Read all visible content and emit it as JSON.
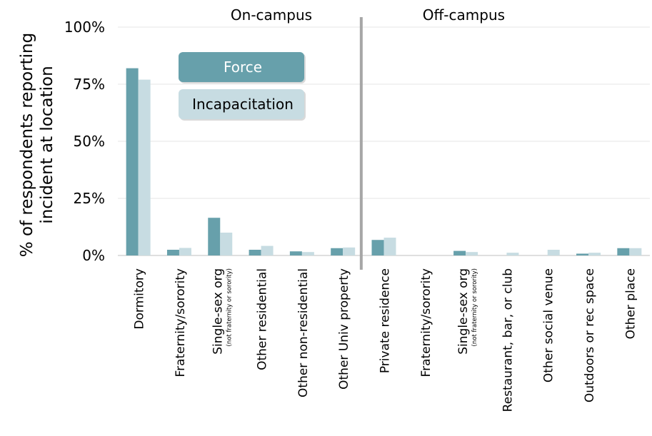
{
  "chart_data": {
    "type": "bar",
    "ylabel_line1": "% of respondents reporting",
    "ylabel_line2": "incident at location",
    "yticks": [
      "0%",
      "25%",
      "50%",
      "75%",
      "100%"
    ],
    "ylim": [
      0,
      100
    ],
    "grid": true,
    "legend_position": "top-left",
    "groups": [
      {
        "label": "On-campus",
        "start": 0,
        "end": 5
      },
      {
        "label": "Off-campus",
        "start": 6,
        "end": 12
      }
    ],
    "categories": [
      {
        "main": "Dormitory",
        "sub": ""
      },
      {
        "main": "Fraternity/sorority",
        "sub": ""
      },
      {
        "main": "Single-sex org",
        "sub": "(not fraternity or sorority)"
      },
      {
        "main": "Other residential",
        "sub": ""
      },
      {
        "main": "Other non-residential",
        "sub": ""
      },
      {
        "main": "Other Univ property",
        "sub": ""
      },
      {
        "main": "Private residence",
        "sub": ""
      },
      {
        "main": "Fraternity/sorority",
        "sub": ""
      },
      {
        "main": "Single-sex org",
        "sub": "(not fraternity or sorority)"
      },
      {
        "main": "Restaurant, bar, or club",
        "sub": ""
      },
      {
        "main": "Other social venue",
        "sub": ""
      },
      {
        "main": "Outdoors or rec space",
        "sub": ""
      },
      {
        "main": "Other place",
        "sub": ""
      }
    ],
    "series": [
      {
        "name": "Force",
        "color": "#67a0ab",
        "values": [
          82,
          2.5,
          16.5,
          2.5,
          1.8,
          3.2,
          6.8,
          0,
          2,
          0,
          0,
          0.8,
          3.2
        ]
      },
      {
        "name": "Incapacitation",
        "color": "#c7dce2",
        "values": [
          77,
          3.3,
          10,
          4.2,
          1.5,
          3.5,
          7.8,
          0,
          1.5,
          1.2,
          2.5,
          1.2,
          3.2
        ]
      }
    ]
  }
}
